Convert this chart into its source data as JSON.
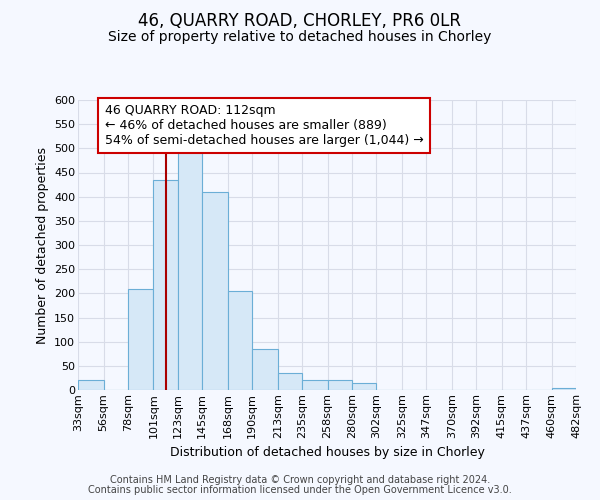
{
  "title": "46, QUARRY ROAD, CHORLEY, PR6 0LR",
  "subtitle": "Size of property relative to detached houses in Chorley",
  "xlabel": "Distribution of detached houses by size in Chorley",
  "ylabel": "Number of detached properties",
  "bin_edges": [
    33,
    56,
    78,
    101,
    123,
    145,
    168,
    190,
    213,
    235,
    258,
    280,
    302,
    325,
    347,
    370,
    392,
    415,
    437,
    460,
    482
  ],
  "bin_counts": [
    20,
    0,
    210,
    435,
    500,
    410,
    205,
    85,
    35,
    20,
    20,
    15,
    0,
    0,
    0,
    0,
    0,
    0,
    0,
    5
  ],
  "bar_facecolor": "#d6e8f7",
  "bar_edgecolor": "#6baed6",
  "property_size": 112,
  "property_line_color": "#aa0000",
  "annotation_text": "46 QUARRY ROAD: 112sqm\n← 46% of detached houses are smaller (889)\n54% of semi-detached houses are larger (1,044) →",
  "annotation_box_edgecolor": "#cc0000",
  "annotation_box_facecolor": "#ffffff",
  "ylim": [
    0,
    600
  ],
  "yticks": [
    0,
    50,
    100,
    150,
    200,
    250,
    300,
    350,
    400,
    450,
    500,
    550,
    600
  ],
  "tick_labels": [
    "33sqm",
    "56sqm",
    "78sqm",
    "101sqm",
    "123sqm",
    "145sqm",
    "168sqm",
    "190sqm",
    "213sqm",
    "235sqm",
    "258sqm",
    "280sqm",
    "302sqm",
    "325sqm",
    "347sqm",
    "370sqm",
    "392sqm",
    "415sqm",
    "437sqm",
    "460sqm",
    "482sqm"
  ],
  "footer1": "Contains HM Land Registry data © Crown copyright and database right 2024.",
  "footer2": "Contains public sector information licensed under the Open Government Licence v3.0.",
  "background_color": "#f5f8ff",
  "plot_bg_color": "#f5f8ff",
  "grid_color": "#d8dce8",
  "title_fontsize": 12,
  "subtitle_fontsize": 10,
  "axis_label_fontsize": 9,
  "tick_fontsize": 8,
  "annotation_fontsize": 9,
  "footer_fontsize": 7
}
